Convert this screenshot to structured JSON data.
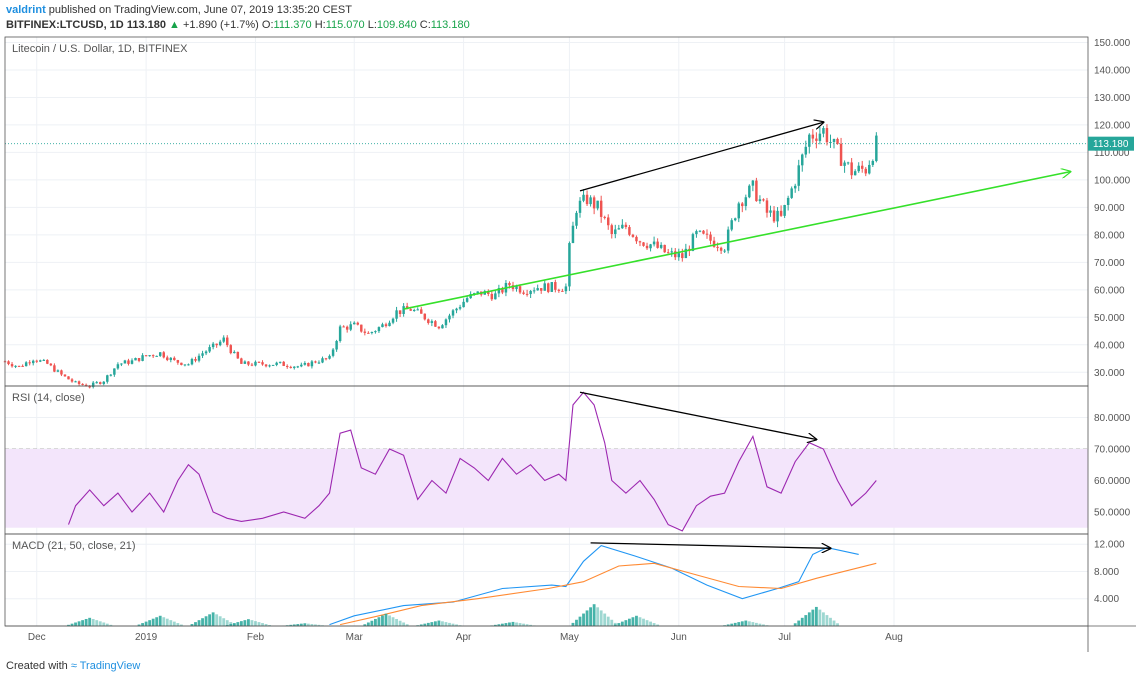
{
  "header": {
    "author": "valdrint",
    "published_text": "published on TradingView.com, June 07, 2019 13:35:20 CEST",
    "symbol": "BITFINEX:LTCUSD, 1D",
    "last": "113.180",
    "change": "+1.890 (+1.7%)",
    "o_label": "O:",
    "o_value": "111.370",
    "h_label": "H:",
    "h_value": "115.070",
    "l_label": "L:",
    "l_value": "109.840",
    "c_label": "C:",
    "c_value": "113.180"
  },
  "footer": {
    "created_with": "Created with",
    "brand": "TradingView"
  },
  "colors": {
    "up": "#26a69a",
    "down": "#ef5350",
    "support": "#35e02a",
    "rsi": "#9c27b0",
    "rsi_band": "#f3e5fb",
    "macd": "#2196f3",
    "signal": "#ff8a33",
    "hist": "#26a69a"
  },
  "chart_data": [
    {
      "type": "candlestick",
      "title": "Litecoin / U.S. Dollar, 1D, BITFINEX",
      "ylim": [
        25,
        152
      ],
      "y_ticks": [
        "150.000",
        "140.000",
        "130.000",
        "120.000",
        "110.000",
        "100.000",
        "90.000",
        "80.000",
        "70.000",
        "60.000",
        "50.000",
        "40.000",
        "30.000"
      ],
      "x_ticks": [
        "Dec",
        "2019",
        "Feb",
        "Mar",
        "Apr",
        "May",
        "Jun",
        "Jul",
        "Aug"
      ],
      "last_price_label": "113.180",
      "last_price": 113.18,
      "close_path": [
        [
          "2018-11-22",
          34
        ],
        [
          "2018-11-26",
          32
        ],
        [
          "2018-11-30",
          35
        ],
        [
          "2018-12-04",
          33
        ],
        [
          "2018-12-08",
          29
        ],
        [
          "2018-12-12",
          26
        ],
        [
          "2018-12-16",
          25
        ],
        [
          "2018-12-20",
          27
        ],
        [
          "2018-12-24",
          33
        ],
        [
          "2018-12-28",
          34
        ],
        [
          "2019-01-01",
          36
        ],
        [
          "2019-01-05",
          37
        ],
        [
          "2019-01-09",
          34
        ],
        [
          "2019-01-13",
          33
        ],
        [
          "2019-01-17",
          37
        ],
        [
          "2019-01-21",
          40
        ],
        [
          "2019-01-23",
          42
        ],
        [
          "2019-01-25",
          38
        ],
        [
          "2019-01-28",
          33
        ],
        [
          "2019-02-02",
          33
        ],
        [
          "2019-02-08",
          33
        ],
        [
          "2019-02-14",
          32
        ],
        [
          "2019-02-18",
          34
        ],
        [
          "2019-02-22",
          35
        ],
        [
          "2019-02-25",
          46
        ],
        [
          "2019-03-01",
          47
        ],
        [
          "2019-03-05",
          44
        ],
        [
          "2019-03-09",
          47
        ],
        [
          "2019-03-13",
          52
        ],
        [
          "2019-03-17",
          53
        ],
        [
          "2019-03-21",
          50
        ],
        [
          "2019-03-25",
          47
        ],
        [
          "2019-03-29",
          52
        ],
        [
          "2019-04-02",
          57
        ],
        [
          "2019-04-06",
          59
        ],
        [
          "2019-04-10",
          58
        ],
        [
          "2019-04-14",
          62
        ],
        [
          "2019-04-18",
          60
        ],
        [
          "2019-04-22",
          61
        ],
        [
          "2019-04-26",
          61
        ],
        [
          "2019-04-30",
          61
        ],
        [
          "2019-05-01",
          75
        ],
        [
          "2019-05-03",
          90
        ],
        [
          "2019-05-06",
          93
        ],
        [
          "2019-05-09",
          90
        ],
        [
          "2019-05-13",
          80
        ],
        [
          "2019-05-17",
          83
        ],
        [
          "2019-05-21",
          78
        ],
        [
          "2019-05-25",
          76
        ],
        [
          "2019-05-29",
          73
        ],
        [
          "2019-06-02",
          72
        ],
        [
          "2019-06-06",
          80
        ],
        [
          "2019-06-10",
          78
        ],
        [
          "2019-06-14",
          76
        ],
        [
          "2019-06-18",
          92
        ],
        [
          "2019-06-22",
          97
        ],
        [
          "2019-06-26",
          88
        ],
        [
          "2019-06-30",
          86
        ],
        [
          "2019-07-04",
          100
        ],
        [
          "2019-07-08",
          116
        ],
        [
          "2019-07-12",
          118
        ],
        [
          "2019-07-16",
          110
        ],
        [
          "2019-07-20",
          103
        ],
        [
          "2019-07-24",
          104
        ],
        [
          "2019-07-27",
          113
        ]
      ],
      "annotations": [
        {
          "type": "trendline",
          "color": "black",
          "arrow": true,
          "from": [
            "2019-05-04",
            96
          ],
          "to": [
            "2019-07-12",
            121
          ]
        },
        {
          "type": "trendline",
          "color": "green",
          "arrow": true,
          "from": [
            "2019-03-15",
            53
          ],
          "to": [
            "2019-09-20",
            103
          ]
        }
      ]
    },
    {
      "type": "line",
      "title": "RSI (14, close)",
      "ylim": [
        43,
        90
      ],
      "y_ticks": [
        "80.0000",
        "70.0000",
        "60.0000",
        "50.0000"
      ],
      "band": [
        45,
        70
      ],
      "series": [
        {
          "values": [
            [
              "2018-12-10",
              46
            ],
            [
              "2018-12-12",
              52
            ],
            [
              "2018-12-16",
              57
            ],
            [
              "2018-12-20",
              52
            ],
            [
              "2018-12-24",
              56
            ],
            [
              "2018-12-28",
              50
            ],
            [
              "2019-01-02",
              56
            ],
            [
              "2019-01-06",
              50
            ],
            [
              "2019-01-10",
              60
            ],
            [
              "2019-01-13",
              65
            ],
            [
              "2019-01-16",
              62
            ],
            [
              "2019-01-20",
              50
            ],
            [
              "2019-01-24",
              48
            ],
            [
              "2019-01-28",
              47
            ],
            [
              "2019-02-03",
              48
            ],
            [
              "2019-02-09",
              50
            ],
            [
              "2019-02-15",
              48
            ],
            [
              "2019-02-19",
              52
            ],
            [
              "2019-02-22",
              56
            ],
            [
              "2019-02-25",
              75
            ],
            [
              "2019-02-28",
              76
            ],
            [
              "2019-03-03",
              64
            ],
            [
              "2019-03-07",
              62
            ],
            [
              "2019-03-11",
              70
            ],
            [
              "2019-03-15",
              68
            ],
            [
              "2019-03-19",
              54
            ],
            [
              "2019-03-23",
              60
            ],
            [
              "2019-03-27",
              56
            ],
            [
              "2019-03-31",
              67
            ],
            [
              "2019-04-04",
              64
            ],
            [
              "2019-04-08",
              60
            ],
            [
              "2019-04-12",
              67
            ],
            [
              "2019-04-16",
              62
            ],
            [
              "2019-04-20",
              65
            ],
            [
              "2019-04-24",
              60
            ],
            [
              "2019-04-28",
              62
            ],
            [
              "2019-04-30",
              60
            ],
            [
              "2019-05-02",
              84
            ],
            [
              "2019-05-05",
              88
            ],
            [
              "2019-05-08",
              84
            ],
            [
              "2019-05-11",
              72
            ],
            [
              "2019-05-13",
              60
            ],
            [
              "2019-05-17",
              56
            ],
            [
              "2019-05-21",
              60
            ],
            [
              "2019-05-25",
              54
            ],
            [
              "2019-05-29",
              46
            ],
            [
              "2019-06-02",
              44
            ],
            [
              "2019-06-06",
              52
            ],
            [
              "2019-06-10",
              55
            ],
            [
              "2019-06-14",
              56
            ],
            [
              "2019-06-18",
              66
            ],
            [
              "2019-06-22",
              74
            ],
            [
              "2019-06-26",
              58
            ],
            [
              "2019-06-30",
              56
            ],
            [
              "2019-07-04",
              66
            ],
            [
              "2019-07-08",
              72
            ],
            [
              "2019-07-12",
              70
            ],
            [
              "2019-07-16",
              60
            ],
            [
              "2019-07-20",
              52
            ],
            [
              "2019-07-24",
              56
            ],
            [
              "2019-07-27",
              60
            ]
          ]
        }
      ],
      "annotations": [
        {
          "type": "trendline",
          "color": "black",
          "arrow": true,
          "from": [
            "2019-05-04",
            88
          ],
          "to": [
            "2019-07-10",
            73
          ]
        }
      ]
    },
    {
      "type": "line",
      "title": "MACD (21, 50, close, 21)",
      "ylim": [
        0,
        13.5
      ],
      "y_ticks": [
        "12.000",
        "8.000",
        "4.000"
      ],
      "series": [
        {
          "color": "blue",
          "values": [
            [
              "2019-02-22",
              0.2
            ],
            [
              "2019-03-01",
              1.5
            ],
            [
              "2019-03-15",
              3
            ],
            [
              "2019-03-29",
              3.5
            ],
            [
              "2019-04-12",
              5.5
            ],
            [
              "2019-04-26",
              6
            ],
            [
              "2019-04-30",
              5.8
            ],
            [
              "2019-05-05",
              9.5
            ],
            [
              "2019-05-10",
              11.8
            ],
            [
              "2019-05-20",
              10.2
            ],
            [
              "2019-05-30",
              8.5
            ],
            [
              "2019-06-09",
              6
            ],
            [
              "2019-06-19",
              4
            ],
            [
              "2019-06-29",
              5.5
            ],
            [
              "2019-07-05",
              6.5
            ],
            [
              "2019-07-09",
              10.5
            ],
            [
              "2019-07-13",
              11.5
            ],
            [
              "2019-07-22",
              10.5
            ]
          ]
        },
        {
          "color": "orange",
          "values": [
            [
              "2019-02-25",
              0.2
            ],
            [
              "2019-03-08",
              1.5
            ],
            [
              "2019-03-20",
              3
            ],
            [
              "2019-04-05",
              4
            ],
            [
              "2019-04-25",
              5.5
            ],
            [
              "2019-05-05",
              6.5
            ],
            [
              "2019-05-15",
              8.8
            ],
            [
              "2019-05-25",
              9.2
            ],
            [
              "2019-06-06",
              7.5
            ],
            [
              "2019-06-18",
              5.8
            ],
            [
              "2019-06-30",
              5.5
            ],
            [
              "2019-07-10",
              7
            ],
            [
              "2019-07-27",
              9.2
            ]
          ]
        },
        {
          "type": "histogram",
          "values": [
            [
              "2018-12-16",
              1.2
            ],
            [
              "2019-01-05",
              1.5
            ],
            [
              "2019-01-20",
              2.0
            ],
            [
              "2019-01-30",
              1.0
            ],
            [
              "2019-02-15",
              0.4
            ],
            [
              "2019-03-10",
              1.8
            ],
            [
              "2019-03-25",
              0.8
            ],
            [
              "2019-04-15",
              0.6
            ],
            [
              "2019-05-08",
              3.2
            ],
            [
              "2019-05-20",
              1.5
            ],
            [
              "2019-06-20",
              0.8
            ],
            [
              "2019-07-10",
              2.8
            ]
          ]
        }
      ],
      "annotations": [
        {
          "type": "trendline",
          "color": "black",
          "arrow": true,
          "from": [
            "2019-05-07",
            12.2
          ],
          "to": [
            "2019-07-14",
            11.4
          ]
        }
      ]
    }
  ]
}
